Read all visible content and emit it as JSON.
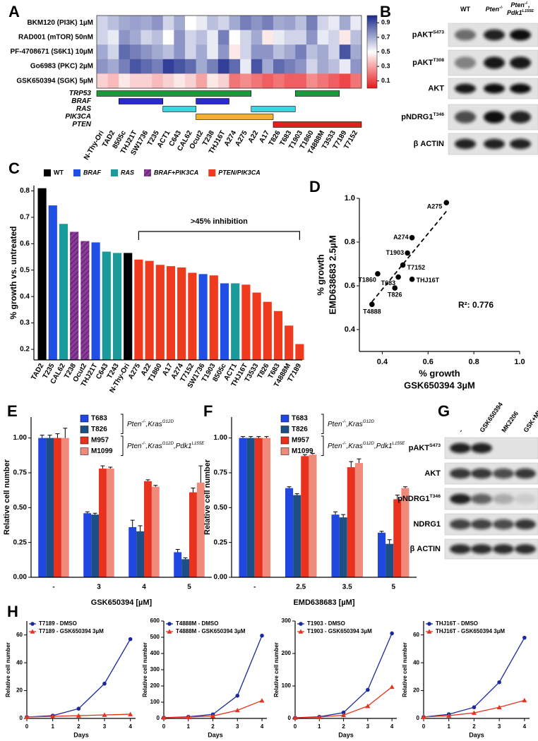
{
  "chart_data": [
    {
      "type": "heatmap",
      "panel": "A",
      "rows": [
        "BKM120 (PI3K) 1µM",
        "RAD001 (mTOR) 50nM",
        "PF-4708671 (S6K1) 10µM",
        "Go6983 (PKC) 2µM",
        "GSK650394 (SGK) 5µM"
      ],
      "columns": [
        "N-Thy-Ori",
        "TAD2",
        "8505c",
        "THJ21T",
        "SW1736",
        "T235",
        "ACT1",
        "C643",
        "CAL62",
        "Ocut2",
        "T238",
        "THJ16T",
        "A274",
        "A275",
        "A22",
        "A17",
        "T826",
        "T683",
        "T1903",
        "T1860",
        "T4888M",
        "T3533",
        "T7189",
        "T7152"
      ],
      "values": [
        [
          0.6,
          0.65,
          0.7,
          0.72,
          0.7,
          0.75,
          0.6,
          0.7,
          0.5,
          0.55,
          0.65,
          0.6,
          0.7,
          0.8,
          0.75,
          0.8,
          0.7,
          0.72,
          0.65,
          0.8,
          0.6,
          0.55,
          0.7,
          0.55
        ],
        [
          0.6,
          0.55,
          0.75,
          0.7,
          0.6,
          0.65,
          0.5,
          0.75,
          0.6,
          0.65,
          0.55,
          0.8,
          0.5,
          0.6,
          0.7,
          0.45,
          0.55,
          0.6,
          0.6,
          0.75,
          0.55,
          0.6,
          0.45,
          0.65
        ],
        [
          0.7,
          0.6,
          0.85,
          0.8,
          0.75,
          0.7,
          0.65,
          0.75,
          0.6,
          0.7,
          0.55,
          0.75,
          0.45,
          0.6,
          0.75,
          0.75,
          0.65,
          0.7,
          0.8,
          0.65,
          0.7,
          0.6,
          0.9,
          0.7
        ],
        [
          0.75,
          0.7,
          0.8,
          0.9,
          0.85,
          0.8,
          0.95,
          0.9,
          0.85,
          0.7,
          0.8,
          0.95,
          0.85,
          0.55,
          0.9,
          0.7,
          0.85,
          0.8,
          0.75,
          0.6,
          0.7,
          0.65,
          0.55,
          0.75
        ],
        [
          0.4,
          0.35,
          0.45,
          0.4,
          0.4,
          0.35,
          0.4,
          0.45,
          0.4,
          0.3,
          0.45,
          0.4,
          0.2,
          0.25,
          0.2,
          0.15,
          0.2,
          0.15,
          0.15,
          0.25,
          0.2,
          0.15,
          0.1,
          0.2
        ]
      ],
      "colors": [
        "#e8191c",
        "#ffffff",
        "#1a2a8c"
      ],
      "clim": [
        0,
        1
      ],
      "cticks": [
        0.9,
        0.7,
        0.5,
        0.3,
        0.1
      ],
      "tracks": [
        {
          "name": "TRP53",
          "color": "#1a9a3a",
          "spans": [
            [
              0,
              13
            ],
            [
              18,
              21
            ]
          ]
        },
        {
          "name": "BRAF",
          "color": "#2a2ad0",
          "spans": [
            [
              2,
              5
            ],
            [
              9,
              11
            ]
          ]
        },
        {
          "name": "RAS",
          "color": "#3fd5e0",
          "spans": [
            [
              6,
              8
            ],
            [
              14,
              17
            ]
          ]
        },
        {
          "name": "PIK3CA",
          "color": "#f5b030",
          "spans": [
            [
              9,
              15
            ]
          ]
        },
        {
          "name": "PTEN",
          "color": "#e0201c",
          "spans": [
            [
              16,
              23
            ]
          ]
        }
      ]
    },
    {
      "type": "bar",
      "panel": "C",
      "y_label": "% growth vs. untreated",
      "categories": [
        "TAD2",
        "T235",
        "CAL62",
        "T238",
        "Ocut2",
        "THJ21T",
        "C643",
        "T243",
        "N-Thy-Ori",
        "A275",
        "A22",
        "T1860",
        "A17",
        "A274",
        "T7152",
        "SW1736",
        "T1903",
        "8505c",
        "ACT1",
        "THJ16T",
        "T3533",
        "T826",
        "T683",
        "T4888M",
        "T7189"
      ],
      "values": [
        0.81,
        0.745,
        0.675,
        0.645,
        0.61,
        0.605,
        0.57,
        0.565,
        0.565,
        0.54,
        0.535,
        0.52,
        0.515,
        0.51,
        0.49,
        0.485,
        0.48,
        0.45,
        0.45,
        0.445,
        0.415,
        0.38,
        0.345,
        0.29,
        0.22
      ],
      "groups": [
        0,
        1,
        2,
        3,
        3,
        1,
        2,
        2,
        0,
        4,
        4,
        4,
        4,
        4,
        4,
        1,
        4,
        1,
        2,
        4,
        4,
        4,
        4,
        4,
        4
      ],
      "legend": [
        {
          "name": "WT",
          "color": "#000000"
        },
        {
          "name": "BRAF",
          "color": "#1f4fe6"
        },
        {
          "name": "RAS",
          "color": "#1a9a9a"
        },
        {
          "name": "BRAF+PIK3CA",
          "color": "#8b3a9a",
          "hatch": true
        },
        {
          "name": "PTEN/PIK3CA",
          "color": "#f03a1e"
        }
      ],
      "ylim": [
        0.16,
        0.82
      ],
      "yticks": [
        0.2,
        0.3,
        0.4,
        0.5,
        0.6,
        0.7,
        0.8
      ],
      "annotation": ">45% inhibition",
      "bracket": [
        9,
        24
      ]
    },
    {
      "type": "scatter",
      "panel": "D",
      "x_label": [
        "% growth",
        "GSK650394 3µM"
      ],
      "y_label": [
        "% growth",
        "EMD638683 2.5µM"
      ],
      "labels": [
        "A275",
        "A274",
        "T1903",
        "T7152",
        "T1860",
        "T683",
        "THJ16T",
        "T826",
        "T4888"
      ],
      "x": [
        0.68,
        0.53,
        0.51,
        0.49,
        0.38,
        0.47,
        0.53,
        0.455,
        0.355
      ],
      "values": [
        0.98,
        0.82,
        0.75,
        0.695,
        0.655,
        0.64,
        0.63,
        0.59,
        0.515
      ],
      "xlim": [
        0.3,
        1.0
      ],
      "ylim": [
        0.3,
        1.0
      ],
      "xticks": [
        0.4,
        0.6,
        0.8,
        {
          "value": 1,
          "label": "1.0"
        }
      ],
      "yticks": [
        0.4,
        0.6,
        0.8,
        {
          "value": 1,
          "label": "1.0"
        }
      ],
      "annotation": "R²: 0.776"
    },
    {
      "type": "bar",
      "panel": "E",
      "x_label": "GSK650394 [µM]",
      "y_label": "Relative cell number",
      "categories": [
        "-",
        "3",
        "4",
        "5"
      ],
      "series": [
        {
          "name": "T683",
          "color": "#2047e0",
          "values": [
            1.0,
            0.46,
            0.36,
            0.18
          ],
          "errors": [
            0.02,
            0.01,
            0.05,
            0.02
          ]
        },
        {
          "name": "T826",
          "color": "#1b4f86",
          "values": [
            1.0,
            0.45,
            0.33,
            0.13
          ],
          "errors": [
            0.02,
            0.01,
            0.04,
            0.01
          ]
        },
        {
          "name": "M957",
          "color": "#e8321e",
          "values": [
            1.0,
            0.78,
            0.69,
            0.61
          ],
          "errors": [
            0.03,
            0.02,
            0.01,
            0.03
          ]
        },
        {
          "name": "M1099",
          "color": "#f08a7a",
          "values": [
            1.0,
            0.78,
            0.65,
            0.68
          ],
          "errors": [
            0.07,
            0.01,
            0.01,
            0.12
          ]
        }
      ],
      "genotypes": [
        [
          "Pten",
          "-/-",
          ",Kras",
          "G12D"
        ],
        [
          "Pten",
          "-/-",
          ",Kras",
          "G12D",
          ",Pdk1",
          "L155E"
        ]
      ],
      "ylim": [
        0,
        1.15
      ],
      "yticks": [
        {
          "value": 0,
          "label": "0.00"
        },
        0.25,
        {
          "value": 0.5,
          "label": "0.50"
        },
        0.75,
        {
          "value": 1,
          "label": "1.00"
        }
      ]
    },
    {
      "type": "bar",
      "panel": "F",
      "x_label": "EMD638683 [µM]",
      "y_label": "Relative cell number",
      "categories": [
        "-",
        "2.5",
        "3.5",
        "5"
      ],
      "series": [
        {
          "name": "T683",
          "color": "#2047e0",
          "values": [
            1.0,
            0.64,
            0.45,
            0.32
          ],
          "errors": [
            0.01,
            0.01,
            0.02,
            0.01
          ]
        },
        {
          "name": "T826",
          "color": "#1b4f86",
          "values": [
            1.0,
            0.59,
            0.43,
            0.24
          ],
          "errors": [
            0.01,
            0.01,
            0.02,
            0.03
          ]
        },
        {
          "name": "M957",
          "color": "#e8321e",
          "values": [
            1.0,
            0.87,
            0.79,
            0.56
          ],
          "errors": [
            0.01,
            0.01,
            0.04,
            0.03
          ]
        },
        {
          "name": "M1099",
          "color": "#f08a7a",
          "values": [
            1.0,
            0.88,
            0.82,
            0.64
          ],
          "errors": [
            0.01,
            0.01,
            0.03,
            0.01
          ]
        }
      ],
      "genotypes": [
        [
          "Pten",
          "-/-",
          ",Kras",
          "G12D"
        ],
        [
          "Pten",
          "-/-",
          ",Kras",
          "G12D",
          ",Pdk1",
          "L155E"
        ]
      ],
      "ylim": [
        0,
        1.15
      ],
      "yticks": [
        {
          "value": 0,
          "label": "0.00"
        },
        0.25,
        {
          "value": 0.5,
          "label": "0.50"
        },
        0.75,
        {
          "value": 1,
          "label": "1.00"
        }
      ]
    },
    {
      "type": "line",
      "panel": "H",
      "x_label": "Days",
      "y_label": "Relative cell number",
      "x": [
        0,
        1,
        2,
        3,
        4
      ],
      "xlim": [
        0,
        4.2
      ],
      "xticks": [
        0,
        1,
        2,
        3,
        4
      ],
      "ylim": [
        0,
        70
      ],
      "yticks": [
        0,
        20,
        40,
        60
      ],
      "series": [
        {
          "name": "T7189 - DMSO",
          "color": "#1a2a9c",
          "marker": "circle",
          "values": [
            1,
            2,
            7,
            25,
            57
          ]
        },
        {
          "name": "T7189 - GSK650394 3µM",
          "color": "#e8321e",
          "marker": "triangle",
          "values": [
            1,
            1.5,
            2,
            2.5,
            3
          ]
        }
      ]
    },
    {
      "type": "line",
      "x_label": "Days",
      "y_label": "Relative cell number",
      "x": [
        0,
        1,
        2,
        3,
        4
      ],
      "xlim": [
        0,
        4.2
      ],
      "xticks": [
        0,
        1,
        2,
        3,
        4
      ],
      "ylim": [
        0,
        600
      ],
      "yticks": [
        0,
        100,
        200,
        300,
        400,
        500,
        600
      ],
      "series": [
        {
          "name": "T4888M - DMSO",
          "color": "#1a2a9c",
          "marker": "circle",
          "values": [
            5,
            10,
            25,
            140,
            510
          ]
        },
        {
          "name": "T4888M - GSK650394 3µM",
          "color": "#e8321e",
          "marker": "triangle",
          "values": [
            5,
            8,
            15,
            50,
            110
          ]
        }
      ]
    },
    {
      "type": "line",
      "x_label": "Days",
      "y_label": "Relative cell number",
      "x": [
        0,
        1,
        2,
        3,
        4
      ],
      "xlim": [
        0,
        4.2
      ],
      "xticks": [
        0,
        1,
        2,
        3,
        4
      ],
      "ylim": [
        0,
        300
      ],
      "yticks": [
        0,
        100,
        200,
        300
      ],
      "series": [
        {
          "name": "T1903 - DMSO",
          "color": "#1a2a9c",
          "marker": "circle",
          "values": [
            2,
            5,
            18,
            88,
            262
          ]
        },
        {
          "name": "T1903 - GSK650394 3µM",
          "color": "#e8321e",
          "marker": "triangle",
          "values": [
            2,
            4,
            10,
            38,
            97
          ]
        }
      ]
    },
    {
      "type": "line",
      "x_label": "Days",
      "y_label": "Relative cell number",
      "x": [
        0,
        1,
        2,
        3,
        4
      ],
      "xlim": [
        0,
        4.2
      ],
      "xticks": [
        0,
        1,
        2,
        3,
        4
      ],
      "ylim": [
        0,
        70
      ],
      "yticks": [
        0,
        20,
        40,
        60
      ],
      "series": [
        {
          "name": "THJ16T - DMSO",
          "color": "#1a2a9c",
          "marker": "circle",
          "values": [
            1,
            3,
            8,
            26,
            58
          ]
        },
        {
          "name": "THJ16T - GSK650394 3µM",
          "color": "#e8321e",
          "marker": "triangle",
          "values": [
            1,
            2,
            4,
            8,
            13
          ]
        }
      ]
    }
  ],
  "blots": [
    {
      "panel": "B",
      "columns": [
        [
          [
            "WT"
          ]
        ],
        [
          [
            "Pten",
            "-/-"
          ]
        ],
        [
          [
            "Pten",
            "-/-",
            ","
          ],
          [
            "Pdk1",
            "L155E"
          ]
        ]
      ],
      "rows": [
        [
          "pAKT",
          "S473"
        ],
        [
          "pAKT",
          "T308"
        ],
        [
          "AKT"
        ],
        [
          "pNDRG1",
          "T346"
        ],
        [
          "β ACTIN"
        ]
      ]
    },
    {
      "panel": "G",
      "columns": [
        "-",
        "GSK650394",
        "MK2206",
        "GSK+MK"
      ],
      "rows": [
        [
          "pAKT",
          "S473"
        ],
        [
          "AKT"
        ],
        [
          "pNDRG1",
          "T346"
        ],
        [
          "NDRG1"
        ],
        [
          "β ACTIN"
        ]
      ]
    }
  ]
}
